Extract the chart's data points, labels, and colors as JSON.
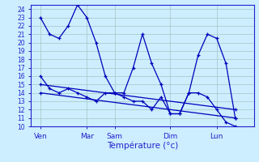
{
  "xlabel": "Température (°c)",
  "background_color": "#cceeff",
  "grid_color": "#aacccc",
  "line_color": "#0000bb",
  "ylim": [
    10,
    24.5
  ],
  "yticks": [
    10,
    11,
    12,
    13,
    14,
    15,
    16,
    17,
    18,
    19,
    20,
    21,
    22,
    23,
    24
  ],
  "xlim": [
    0,
    24
  ],
  "xtick_positions": [
    1,
    6,
    9,
    15,
    20
  ],
  "xtick_labels": [
    "Ven",
    "Mar",
    "Sam",
    "Dim",
    "Lun"
  ],
  "series1_x": [
    1,
    2,
    3,
    4,
    5,
    6,
    7,
    8,
    9,
    10,
    11,
    12,
    13,
    14,
    15,
    16,
    17,
    18,
    19,
    20,
    21,
    22
  ],
  "series1_y": [
    23,
    21,
    20.5,
    22,
    24.5,
    23,
    20,
    16,
    14,
    14,
    17,
    21,
    17.5,
    15,
    11.5,
    11.5,
    14,
    18.5,
    21,
    20.5,
    17.5,
    11
  ],
  "series2_x": [
    1,
    2,
    3,
    4,
    5,
    6,
    7,
    8,
    9,
    10,
    11,
    12,
    13,
    14,
    15,
    16,
    17,
    18,
    19,
    20,
    21,
    22
  ],
  "series2_y": [
    16,
    14.5,
    14,
    14.5,
    14,
    13.5,
    13,
    14,
    14,
    13.5,
    13,
    13,
    12,
    13.5,
    11.5,
    11.5,
    14,
    14,
    13.5,
    12,
    10.5,
    10
  ],
  "series3_x": [
    1,
    22
  ],
  "series3_y": [
    15,
    12
  ],
  "series4_x": [
    1,
    22
  ],
  "series4_y": [
    14,
    11
  ]
}
